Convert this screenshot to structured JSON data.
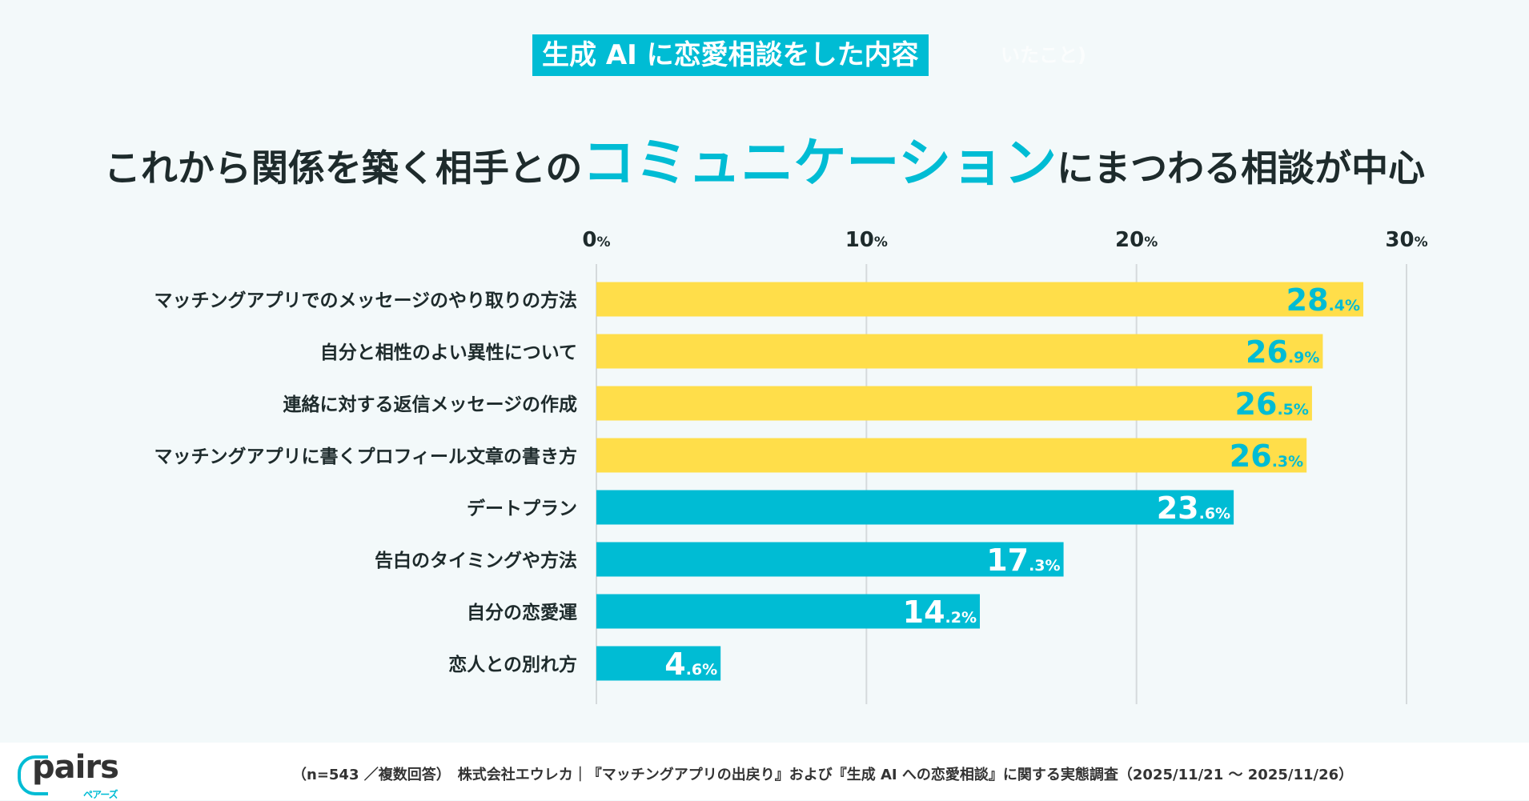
{
  "header": {
    "badge": "生成 AI に恋愛相談をした内容",
    "badge_trailing": "いたこと)",
    "title_pre": "これから関係を築く相手との",
    "title_highlight": "コミュニケーション",
    "title_post": "にまつわる相談が中心"
  },
  "chart_data": {
    "type": "bar",
    "orientation": "horizontal",
    "xlim": [
      0,
      30
    ],
    "ticks": [
      {
        "v": 0,
        "label": "0"
      },
      {
        "v": 10,
        "label": "10"
      },
      {
        "v": 20,
        "label": "20"
      },
      {
        "v": 30,
        "label": "30"
      }
    ],
    "tick_unit": "%",
    "grid": true,
    "categories": [
      "マッチングアプリでのメッセージのやり取りの方法",
      "自分と相性のよい異性について",
      "連絡に対する返信メッセージの作成",
      "マッチングアプリに書くプロフィール文章の書き方",
      "デートプラン",
      "告白のタイミングや方法",
      "自分の恋愛運",
      "恋人との別れ方"
    ],
    "values": [
      28.4,
      26.9,
      26.5,
      26.3,
      23.6,
      17.3,
      14.2,
      4.6
    ],
    "labels_int": [
      "28",
      "26",
      "26",
      "26",
      "23",
      "17",
      "14",
      "4"
    ],
    "labels_dec": [
      ".4%",
      ".9%",
      ".5%",
      ".3%",
      ".6%",
      ".3%",
      ".2%",
      ".6%"
    ],
    "highlight_count": 4,
    "colors": {
      "highlight": "#ffde4a",
      "normal": "#00bcd4",
      "highlight_label": "#00bcd4",
      "normal_label": "#ffffff",
      "grid": "#d5dadc",
      "text": "#1e2b2c"
    }
  },
  "footer": {
    "logo": "pairs",
    "logo_sub": "ペアーズ",
    "source": "（n=543 ／複数回答）　株式会社エウレカ｜『マッチングアプリの出戻り』および『生成 AI への恋愛相談』に関する実態調査（2025/11/21 〜 2025/11/26）"
  }
}
